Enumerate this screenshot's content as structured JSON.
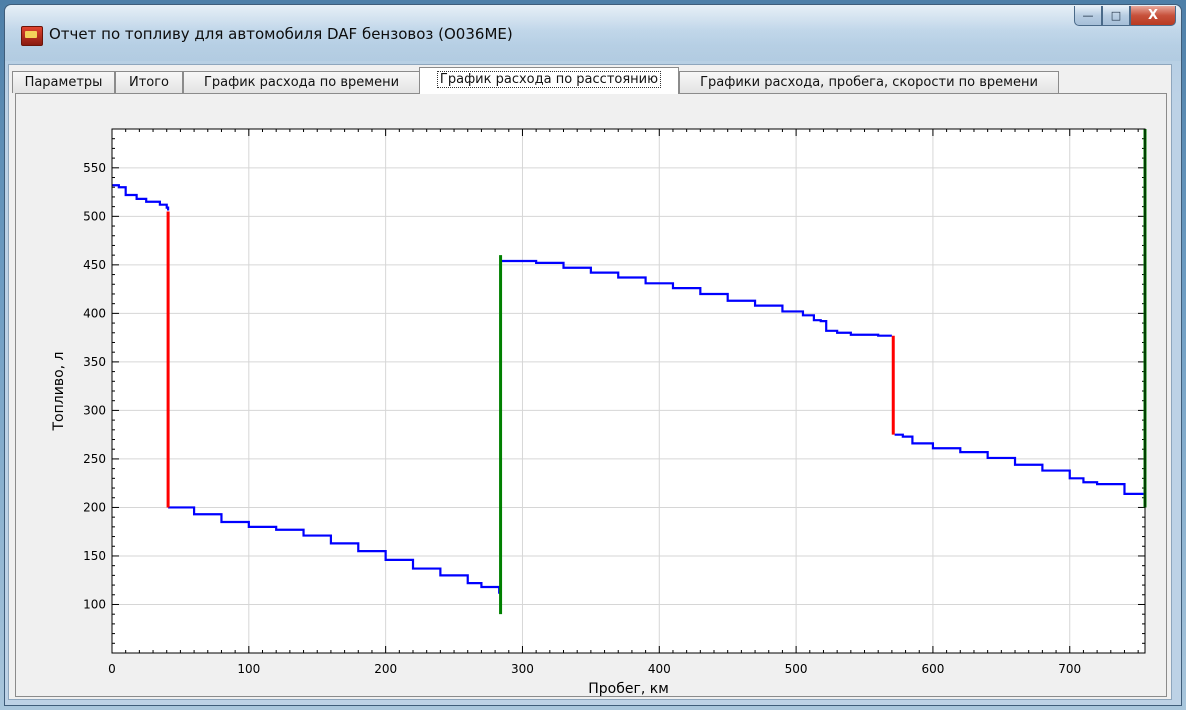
{
  "window": {
    "title": "Отчет по топливу для автомобиля DAF бензовоз (О036МЕ)",
    "buttons": {
      "minimize": "—",
      "maximize": "□",
      "close": "X"
    }
  },
  "tabs": [
    {
      "label": "Параметры",
      "active": false
    },
    {
      "label": "Итого",
      "active": false
    },
    {
      "label": "График расхода по времени",
      "active": false
    },
    {
      "label": "График расхода по расстоянию",
      "active": true
    },
    {
      "label": "Графики расхода, пробега, скорости по времени",
      "active": false
    }
  ],
  "chart_data": {
    "type": "line",
    "xlabel": "Пробег, км",
    "ylabel": "Топливо, л",
    "xlim": [
      0,
      755
    ],
    "ylim": [
      50,
      590
    ],
    "xticks": [
      0,
      100,
      200,
      300,
      400,
      500,
      600,
      700
    ],
    "yticks": [
      100,
      150,
      200,
      250,
      300,
      350,
      400,
      450,
      500,
      550
    ],
    "grid": true,
    "colors": {
      "consumption": "#0000ff",
      "drain": "#ff0000",
      "refuel": "#008000"
    },
    "series": [
      {
        "role": "consumption",
        "x": [
          0,
          5,
          10,
          18,
          25,
          35,
          40,
          41
        ],
        "y": [
          532,
          530,
          522,
          518,
          515,
          512,
          509,
          506
        ]
      },
      {
        "role": "consumption",
        "x": [
          41,
          45,
          60,
          80,
          100,
          120,
          140,
          160,
          180,
          200,
          220,
          240,
          260,
          270,
          283
        ],
        "y": [
          200,
          200,
          193,
          185,
          180,
          177,
          171,
          163,
          155,
          146,
          137,
          130,
          122,
          118,
          111
        ]
      },
      {
        "role": "consumption",
        "x": [
          285,
          290,
          310,
          330,
          350,
          370,
          390,
          410,
          430,
          450,
          470,
          490,
          505,
          513,
          518,
          522,
          530,
          540,
          560,
          570
        ],
        "y": [
          454,
          454,
          452,
          447,
          442,
          437,
          431,
          426,
          420,
          413,
          408,
          402,
          398,
          393,
          392,
          382,
          380,
          378,
          377,
          377
        ]
      },
      {
        "role": "consumption",
        "x": [
          572,
          578,
          585,
          600,
          620,
          640,
          660,
          680,
          700,
          710,
          720,
          740,
          755
        ],
        "y": [
          275,
          273,
          266,
          261,
          257,
          251,
          244,
          238,
          230,
          226,
          224,
          214,
          205
        ]
      }
    ],
    "events": [
      {
        "type": "drain",
        "x": 41,
        "y_from": 505,
        "y_to": 200
      },
      {
        "type": "refuel",
        "x": 284,
        "y_from": 90,
        "y_to": 460
      },
      {
        "type": "drain",
        "x": 571,
        "y_from": 377,
        "y_to": 275
      },
      {
        "type": "refuel",
        "x": 755,
        "y_from": 200,
        "y_to": 590
      }
    ]
  }
}
